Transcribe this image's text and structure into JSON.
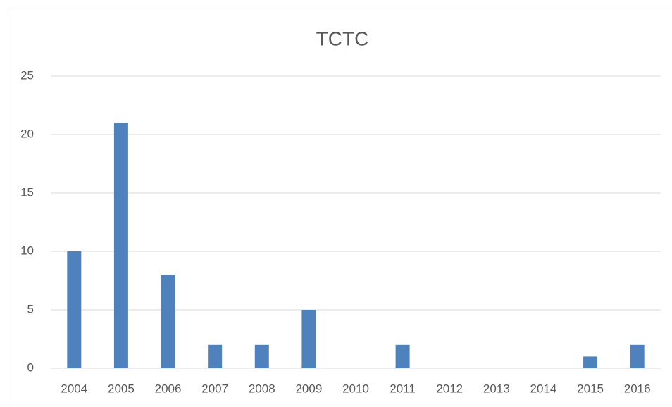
{
  "chart_data": {
    "type": "bar",
    "title": "TCTC",
    "categories": [
      "2004",
      "2005",
      "2006",
      "2007",
      "2008",
      "2009",
      "2010",
      "2011",
      "2012",
      "2013",
      "2014",
      "2015",
      "2016"
    ],
    "values": [
      10,
      21,
      8,
      2,
      2,
      5,
      0,
      2,
      0,
      0,
      0,
      1,
      2
    ],
    "color": "#4f81bd",
    "ylim": [
      0,
      25
    ],
    "yticks": [
      0,
      5,
      10,
      15,
      20,
      25
    ],
    "grid": true
  }
}
